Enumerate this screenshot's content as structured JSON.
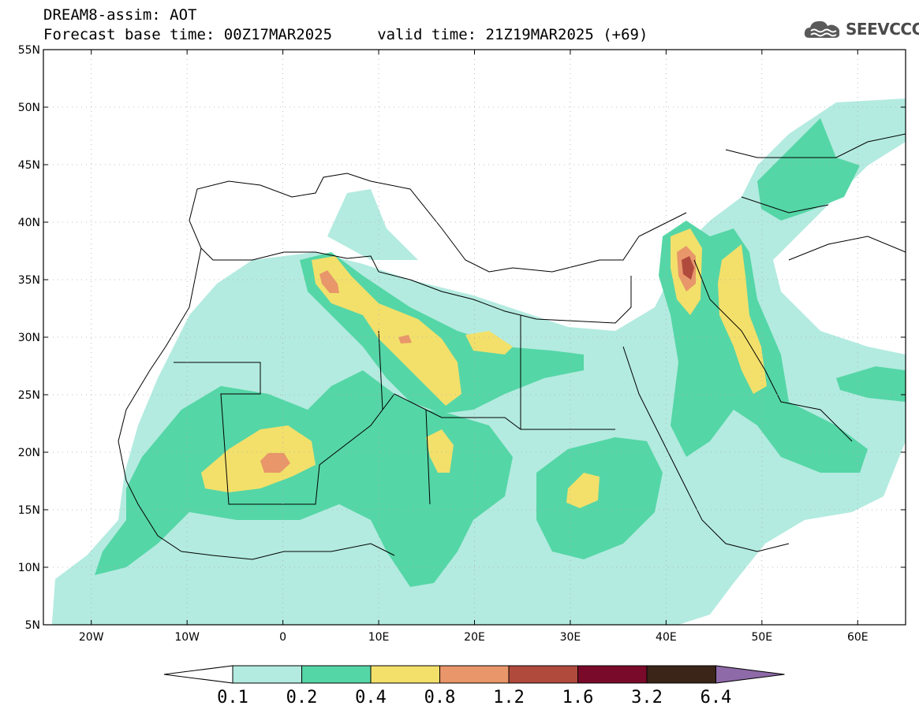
{
  "header": {
    "title_line1": "DREAM8-assim: AOT",
    "title_line2": "Forecast base time: 00Z17MAR2025     valid time: 21Z19MAR2025 (+69)"
  },
  "logo": {
    "text": "SEEVCCC",
    "icon": "cloud-icon"
  },
  "map": {
    "projection": "lat-lon",
    "lat_range": [
      5,
      55
    ],
    "lon_range": [
      -25,
      65
    ],
    "grid": true,
    "lat_ticks": [
      {
        "value": 55,
        "label": "55N"
      },
      {
        "value": 50,
        "label": "50N"
      },
      {
        "value": 45,
        "label": "45N"
      },
      {
        "value": 40,
        "label": "40N"
      },
      {
        "value": 35,
        "label": "35N"
      },
      {
        "value": 30,
        "label": "30N"
      },
      {
        "value": 25,
        "label": "25N"
      },
      {
        "value": 20,
        "label": "20N"
      },
      {
        "value": 15,
        "label": "15N"
      },
      {
        "value": 10,
        "label": "10N"
      },
      {
        "value": 5,
        "label": "5N"
      }
    ],
    "lon_ticks": [
      {
        "value": -20,
        "label": "20W"
      },
      {
        "value": -10,
        "label": "10W"
      },
      {
        "value": 0,
        "label": "0"
      },
      {
        "value": 10,
        "label": "10E"
      },
      {
        "value": 20,
        "label": "20E"
      },
      {
        "value": 30,
        "label": "30E"
      },
      {
        "value": 40,
        "label": "40E"
      },
      {
        "value": 50,
        "label": "50E"
      },
      {
        "value": 60,
        "label": "60E"
      }
    ]
  },
  "colorbar": {
    "colors": [
      "#b3ebe0",
      "#55d6a6",
      "#f2e06b",
      "#e8966a",
      "#b04a3d",
      "#7a0a2a",
      "#3a2518",
      "#8e6aa8"
    ],
    "labels": [
      "0.1",
      "0.2",
      "0.4",
      "0.8",
      "1.2",
      "1.6",
      "3.2",
      "6.4"
    ]
  }
}
